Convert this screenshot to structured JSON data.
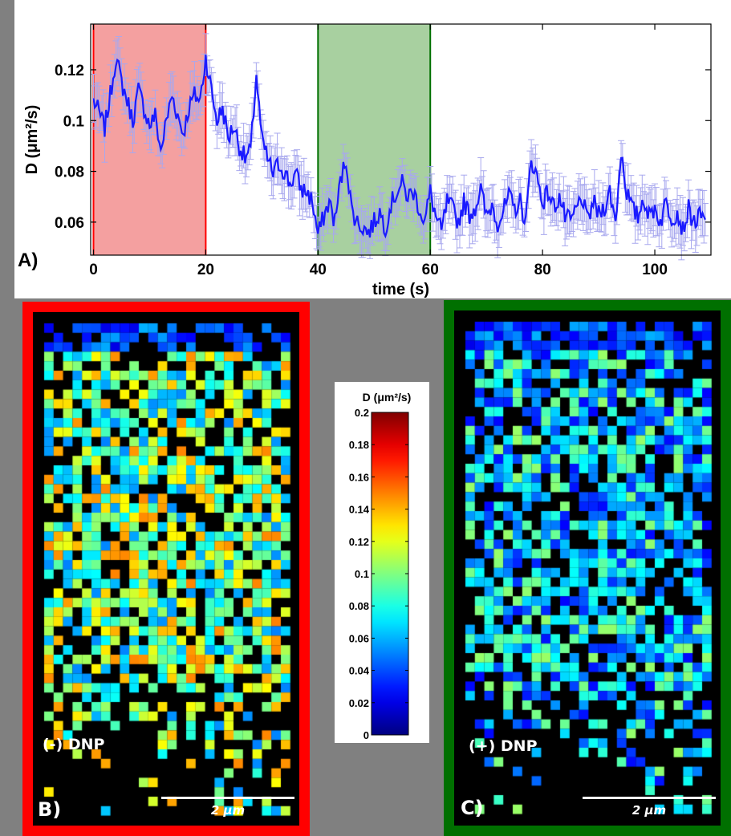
{
  "chart_data": [
    {
      "type": "line",
      "panel_label": "A)",
      "xlabel": "time (s)",
      "ylabel": "D (μm²/s)",
      "xlim": [
        -0.5,
        110
      ],
      "ylim": [
        0.047,
        0.138
      ],
      "x_ticks": [
        0,
        20,
        40,
        60,
        80,
        100
      ],
      "y_ticks": [
        0.06,
        0.08,
        0.1,
        0.12
      ],
      "y_tick_labels": [
        "0.06",
        "0.08",
        "0.1",
        "0.12"
      ],
      "line_color": "#1a1aff",
      "errorbar_color": "#a8a8ee",
      "shaded_regions": [
        {
          "x": [
            0,
            20
          ],
          "color": "#f4a0a0",
          "edge": "#ff0000"
        },
        {
          "x": [
            40,
            60
          ],
          "color": "#a8d0a0",
          "edge": "#007000"
        }
      ],
      "series": [
        {
          "x": [
            0,
            1,
            2,
            3,
            4,
            5,
            6,
            7,
            8,
            9,
            10,
            11,
            12,
            13,
            14,
            15,
            16,
            17,
            18,
            19,
            20,
            21,
            22,
            23,
            24,
            25,
            26,
            27,
            28,
            29,
            30,
            31,
            32,
            33,
            34,
            35,
            36,
            37,
            38,
            39,
            40,
            41,
            42,
            43,
            44,
            45,
            46,
            47,
            48,
            49,
            50,
            51,
            52,
            53,
            54,
            55,
            56,
            57,
            58,
            59,
            60,
            61,
            62,
            63,
            64,
            65,
            66,
            67,
            68,
            69,
            70,
            71,
            72,
            73,
            74,
            75,
            76,
            77,
            78,
            79,
            80,
            81,
            82,
            83,
            84,
            85,
            86,
            87,
            88,
            89,
            90,
            91,
            92,
            93,
            94,
            95,
            96,
            97,
            98,
            99,
            100,
            101,
            102,
            103,
            104,
            105,
            106,
            107,
            108,
            109
          ],
          "y": [
            0.108,
            0.103,
            0.097,
            0.11,
            0.125,
            0.115,
            0.108,
            0.1,
            0.112,
            0.105,
            0.098,
            0.102,
            0.088,
            0.1,
            0.11,
            0.102,
            0.095,
            0.105,
            0.11,
            0.108,
            0.125,
            0.112,
            0.1,
            0.105,
            0.093,
            0.098,
            0.09,
            0.085,
            0.088,
            0.118,
            0.092,
            0.085,
            0.079,
            0.083,
            0.08,
            0.075,
            0.079,
            0.073,
            0.072,
            0.068,
            0.055,
            0.062,
            0.068,
            0.06,
            0.076,
            0.085,
            0.065,
            0.06,
            0.058,
            0.056,
            0.06,
            0.064,
            0.058,
            0.067,
            0.072,
            0.075,
            0.07,
            0.072,
            0.066,
            0.06,
            0.072,
            0.062,
            0.056,
            0.068,
            0.065,
            0.06,
            0.068,
            0.063,
            0.066,
            0.073,
            0.062,
            0.067,
            0.06,
            0.064,
            0.07,
            0.065,
            0.068,
            0.06,
            0.085,
            0.078,
            0.068,
            0.072,
            0.066,
            0.07,
            0.062,
            0.06,
            0.065,
            0.07,
            0.06,
            0.068,
            0.063,
            0.066,
            0.072,
            0.06,
            0.088,
            0.072,
            0.065,
            0.062,
            0.07,
            0.062,
            0.066,
            0.06,
            0.068,
            0.062,
            0.064,
            0.057,
            0.065,
            0.06,
            0.062,
            0.061
          ],
          "err": 0.008
        }
      ]
    },
    {
      "type": "heatmap",
      "panel_label": "B)",
      "condition_label": "(-) DNP",
      "scalebar_label": "2 μm",
      "frame_color": "#ff0000",
      "colorbar_label": "D (μm²/s)",
      "colorbar_ticks": [
        "0",
        "0.02",
        "0.04",
        "0.06",
        "0.08",
        "0.1",
        "0.12",
        "0.14",
        "0.16",
        "0.18",
        "0.2"
      ],
      "colorbar_range": [
        0,
        0.2
      ],
      "grid": {
        "cols": 26,
        "rows": 52,
        "mean_D": 0.1,
        "spread_D": 0.05
      }
    },
    {
      "type": "heatmap",
      "panel_label": "C)",
      "condition_label": "(+) DNP",
      "scalebar_label": "2 μm",
      "frame_color": "#007000",
      "grid": {
        "cols": 26,
        "rows": 52,
        "mean_D": 0.065,
        "spread_D": 0.04
      }
    }
  ]
}
